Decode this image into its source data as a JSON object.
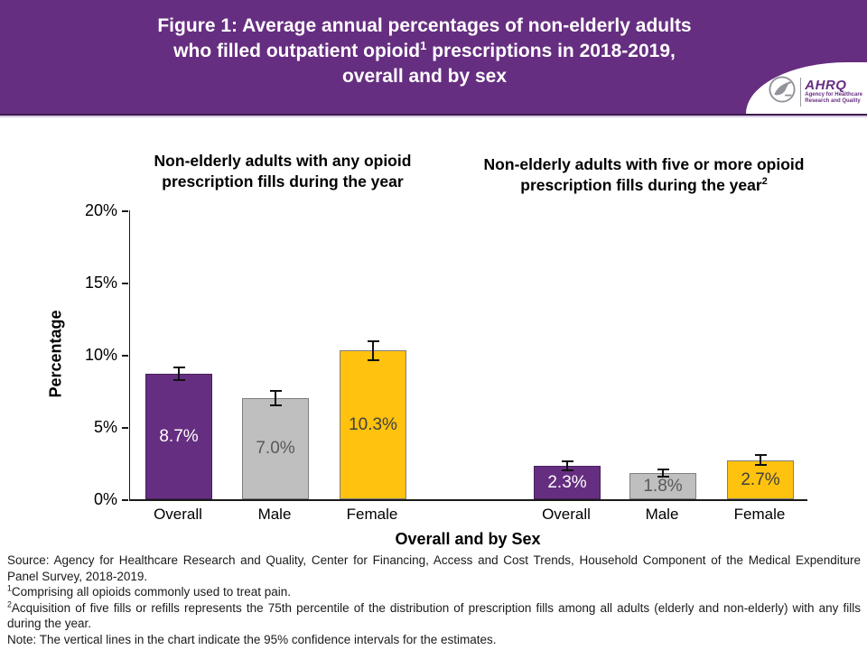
{
  "header": {
    "title_line1": "Figure 1: Average annual percentages of non-elderly adults",
    "title_line2_pre": "who filled outpatient opioid",
    "title_line2_sup": "1",
    "title_line2_post": " prescriptions in 2018-2019,",
    "title_line3": "overall and by sex",
    "logo": {
      "eagle_icon": "hhs-eagle-icon",
      "name": "AHRQ",
      "tagline_line1": "Agency for Healthcare",
      "tagline_line2": "Research and Quality"
    }
  },
  "colors": {
    "header_purple": "#662E80",
    "bar_purple": "#662E80",
    "bar_gray": "#BFBFBF",
    "bar_gold": "#FFC20E",
    "bar_borders": [
      "#49205C",
      "#7F7F7F",
      "#7F7F7F"
    ],
    "value_label_colors": [
      "#FFFFFF",
      "#595959",
      "#404040"
    ],
    "axis_black": "#1a1a1a"
  },
  "chart_data": {
    "type": "bar",
    "ylabel": "Percentage",
    "xlabel": "Overall and by Sex",
    "ylim": [
      0,
      20
    ],
    "ytick_labels": [
      "20%",
      "15%",
      "10%",
      "5%",
      "0%"
    ],
    "ytick_values": [
      20,
      15,
      10,
      5,
      0
    ],
    "grid": false,
    "error_bars": "95% confidence intervals",
    "bar_colors": [
      "#662E80",
      "#BFBFBF",
      "#FFC20E"
    ],
    "groups": [
      {
        "title": "Non-elderly adults with any opioid prescription fills during the year",
        "title_sup": "",
        "categories": [
          "Overall",
          "Male",
          "Female"
        ],
        "values": [
          8.7,
          7.0,
          10.3
        ],
        "value_labels": [
          "8.7%",
          "7.0%",
          "10.3%"
        ],
        "ci_halfwidth": [
          0.45,
          0.5,
          0.65
        ]
      },
      {
        "title": "Non-elderly adults with five or more opioid prescription fills during the year",
        "title_sup": "2",
        "categories": [
          "Overall",
          "Male",
          "Female"
        ],
        "values": [
          2.3,
          1.8,
          2.7
        ],
        "value_labels": [
          "2.3%",
          "1.8%",
          "2.7%"
        ],
        "ci_halfwidth": [
          0.3,
          0.25,
          0.35
        ]
      }
    ]
  },
  "footnotes": [
    {
      "sup": "",
      "text": "Source: Agency for Healthcare Research and Quality, Center for Financing, Access and Cost Trends, Household Component of the Medical Expenditure Panel Survey, 2018-2019."
    },
    {
      "sup": "1",
      "text": "Comprising all opioids commonly used to treat pain."
    },
    {
      "sup": "2",
      "text": "Acquisition of five fills or refills represents the 75th percentile of the distribution of prescription fills among all adults (elderly and non-elderly) with any fills during the year."
    },
    {
      "sup": "",
      "text": "Note: The vertical lines in the chart indicate the 95% confidence intervals for the estimates."
    }
  ]
}
